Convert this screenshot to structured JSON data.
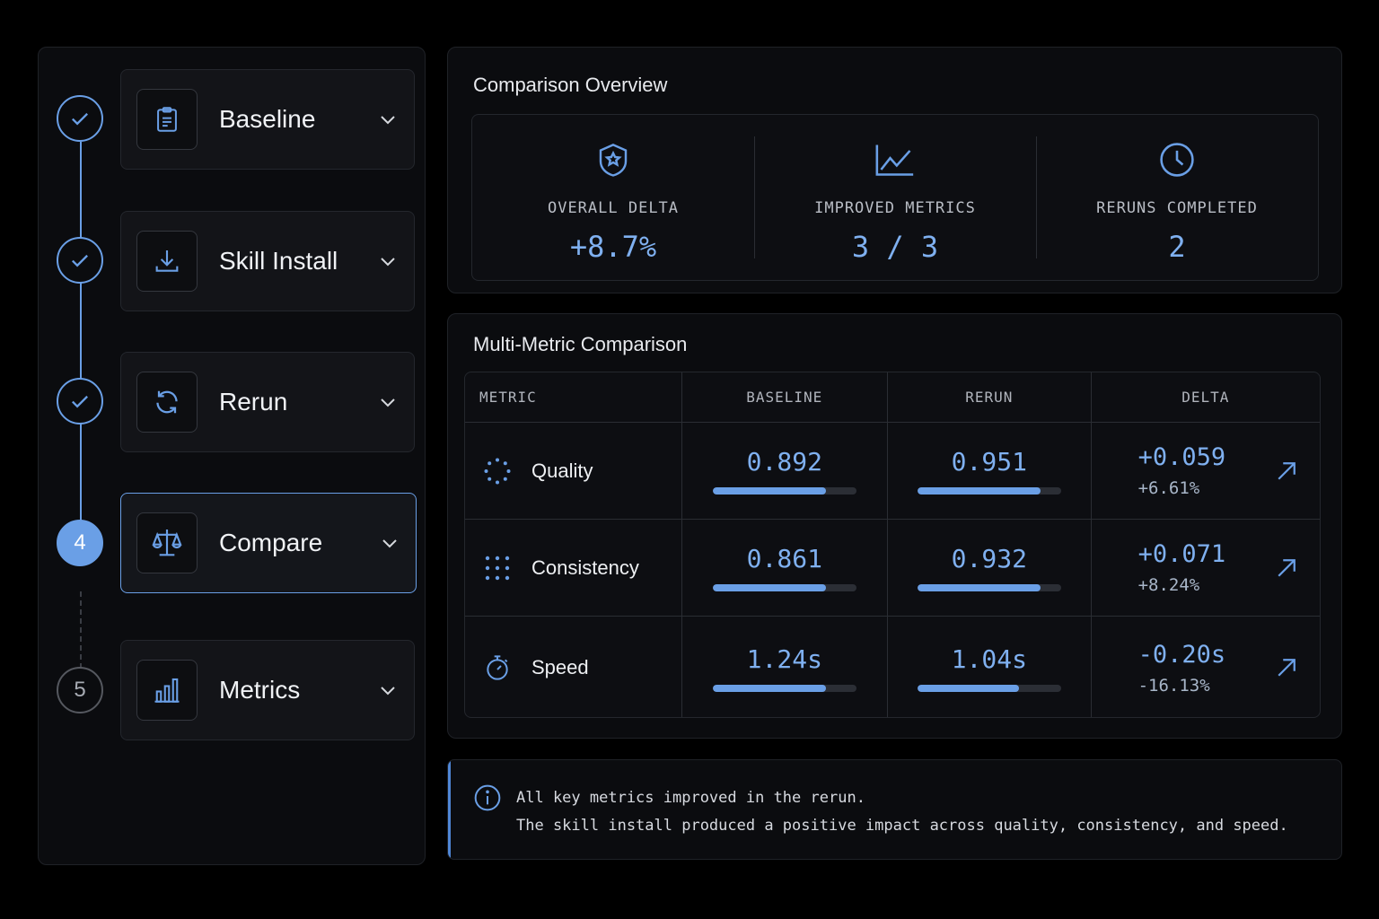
{
  "steps": [
    {
      "label": "Baseline",
      "state": "done",
      "icon": "clipboard-icon"
    },
    {
      "label": "Skill Install",
      "state": "done",
      "icon": "download-icon"
    },
    {
      "label": "Rerun",
      "state": "done",
      "icon": "refresh-icon"
    },
    {
      "label": "Compare",
      "state": "active",
      "number": "4",
      "icon": "scale-icon"
    },
    {
      "label": "Metrics",
      "state": "todo",
      "number": "5",
      "icon": "bar-chart-icon"
    }
  ],
  "overview": {
    "title": "Comparison Overview",
    "kpis": [
      {
        "label": "OVERALL DELTA",
        "value": "+8.7%",
        "icon": "shield-star-icon"
      },
      {
        "label": "IMPROVED METRICS",
        "value": "3 / 3",
        "icon": "line-chart-icon"
      },
      {
        "label": "RERUNS COMPLETED",
        "value": "2",
        "icon": "clock-icon"
      }
    ]
  },
  "comparison": {
    "title": "Multi-Metric Comparison",
    "headers": [
      "METRIC",
      "BASELINE",
      "RERUN",
      "DELTA"
    ],
    "rows": [
      {
        "metric": "Quality",
        "icon": "dotted-circle-icon",
        "baseline": "0.892",
        "baseline_fill": 0.79,
        "rerun": "0.951",
        "rerun_fill": 0.86,
        "delta": "+0.059",
        "delta_pct": "+6.61%"
      },
      {
        "metric": "Consistency",
        "icon": "dot-grid-icon",
        "baseline": "0.861",
        "baseline_fill": 0.79,
        "rerun": "0.932",
        "rerun_fill": 0.86,
        "delta": "+0.071",
        "delta_pct": "+8.24%"
      },
      {
        "metric": "Speed",
        "icon": "stopwatch-icon",
        "baseline": "1.24s",
        "baseline_fill": 0.79,
        "rerun": "1.04s",
        "rerun_fill": 0.71,
        "delta": "-0.20s",
        "delta_pct": "-16.13%"
      }
    ]
  },
  "info": {
    "line1": "All key metrics improved in the rerun.",
    "line2": "The skill install produced a positive impact across quality, consistency, and speed."
  },
  "colors": {
    "accent": "#6a9fe6",
    "background": "#000000",
    "panel": "#0b0c0f"
  }
}
